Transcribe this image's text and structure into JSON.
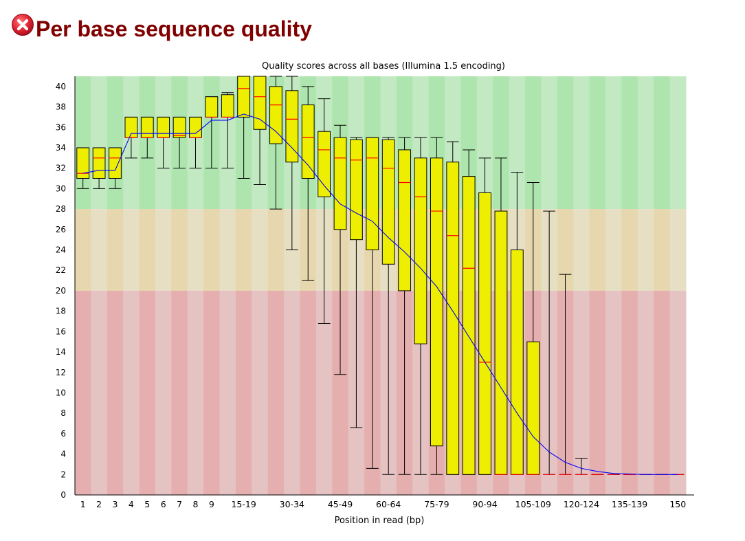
{
  "module": {
    "title": "Per base sequence quality",
    "status_icon": "fail-x-icon",
    "status_color": "#e32636"
  },
  "chart_data": {
    "type": "boxplot",
    "title": "Quality scores across all bases (Illumina 1.5 encoding)",
    "xlabel": "Position in read (bp)",
    "ylabel": "",
    "ylim": [
      0,
      41
    ],
    "yticks": [
      0,
      2,
      4,
      6,
      8,
      10,
      12,
      14,
      16,
      18,
      20,
      22,
      24,
      26,
      28,
      30,
      32,
      34,
      36,
      38,
      40
    ],
    "zones": [
      {
        "name": "good",
        "from": 28,
        "to": 41,
        "colors": [
          "#aee5ae",
          "#c3e9c3"
        ]
      },
      {
        "name": "reasonable",
        "from": 20,
        "to": 28,
        "colors": [
          "#e6d7ae",
          "#e6dfc3"
        ]
      },
      {
        "name": "poor",
        "from": 0,
        "to": 20,
        "colors": [
          "#e6afaf",
          "#e6c3c3"
        ]
      }
    ],
    "colors": {
      "box": "#eeee00",
      "median": "#ff0000",
      "mean": "#0000ff",
      "whisker": "#000000"
    },
    "categories": [
      "1",
      "2",
      "3",
      "4",
      "5",
      "6",
      "7",
      "8",
      "9",
      "10-14",
      "15-19",
      "20-24",
      "25-29",
      "30-34",
      "35-39",
      "40-44",
      "45-49",
      "50-54",
      "55-59",
      "60-64",
      "65-69",
      "70-74",
      "75-79",
      "80-84",
      "85-89",
      "90-94",
      "95-99",
      "100-104",
      "105-109",
      "110-114",
      "115-119",
      "120-124",
      "125-129",
      "130-134",
      "135-139",
      "140-144",
      "145-149",
      "150"
    ],
    "x_tick_labels": [
      "1",
      "2",
      "3",
      "4",
      "5",
      "6",
      "7",
      "8",
      "9",
      "",
      "15-19",
      "",
      "",
      "30-34",
      "",
      "",
      "45-49",
      "",
      "",
      "60-64",
      "",
      "",
      "75-79",
      "",
      "",
      "90-94",
      "",
      "",
      "105-109",
      "",
      "",
      "120-124",
      "",
      "",
      "135-139",
      "",
      "",
      "150"
    ],
    "boxes": [
      {
        "low": 30,
        "q1": 31,
        "median": 31.5,
        "q3": 34,
        "high": 34
      },
      {
        "low": 30,
        "q1": 31,
        "median": 33,
        "q3": 34,
        "high": 34
      },
      {
        "low": 30,
        "q1": 31,
        "median": 33,
        "q3": 34,
        "high": 34
      },
      {
        "low": 33,
        "q1": 35,
        "median": 35,
        "q3": 37,
        "high": 37
      },
      {
        "low": 33,
        "q1": 35,
        "median": 35,
        "q3": 37,
        "high": 37
      },
      {
        "low": 32,
        "q1": 35,
        "median": 35,
        "q3": 37,
        "high": 37
      },
      {
        "low": 32,
        "q1": 35,
        "median": 35.2,
        "q3": 37,
        "high": 37
      },
      {
        "low": 32,
        "q1": 35,
        "median": 35,
        "q3": 37,
        "high": 37
      },
      {
        "low": 32,
        "q1": 37,
        "median": 37,
        "q3": 39,
        "high": 39
      },
      {
        "low": 32,
        "q1": 37,
        "median": 37,
        "q3": 39.2,
        "high": 39.4
      },
      {
        "low": 31,
        "q1": 37,
        "median": 39.8,
        "q3": 41,
        "high": 41
      },
      {
        "low": 30.4,
        "q1": 35.8,
        "median": 39,
        "q3": 41,
        "high": 41
      },
      {
        "low": 28,
        "q1": 34.4,
        "median": 38.2,
        "q3": 40,
        "high": 41
      },
      {
        "low": 24,
        "q1": 32.6,
        "median": 36.8,
        "q3": 39.6,
        "high": 41
      },
      {
        "low": 21,
        "q1": 31,
        "median": 35,
        "q3": 38.2,
        "high": 40
      },
      {
        "low": 16.8,
        "q1": 29.2,
        "median": 33.8,
        "q3": 35.6,
        "high": 38.8
      },
      {
        "low": 11.8,
        "q1": 26,
        "median": 33,
        "q3": 35,
        "high": 36.2
      },
      {
        "low": 6.6,
        "q1": 25,
        "median": 32.8,
        "q3": 34.8,
        "high": 35
      },
      {
        "low": 2.6,
        "q1": 24,
        "median": 33,
        "q3": 35,
        "high": 35
      },
      {
        "low": 2,
        "q1": 22.6,
        "median": 32,
        "q3": 34.8,
        "high": 35
      },
      {
        "low": 2,
        "q1": 20,
        "median": 30.6,
        "q3": 33.8,
        "high": 35
      },
      {
        "low": 2,
        "q1": 14.8,
        "median": 29.2,
        "q3": 33,
        "high": 35
      },
      {
        "low": 2,
        "q1": 4.8,
        "median": 27.8,
        "q3": 33,
        "high": 35
      },
      {
        "low": 2,
        "q1": 2,
        "median": 25.4,
        "q3": 32.6,
        "high": 34.6
      },
      {
        "low": 2,
        "q1": 2,
        "median": 22.2,
        "q3": 31.2,
        "high": 33.8
      },
      {
        "low": 2,
        "q1": 2,
        "median": 13,
        "q3": 29.6,
        "high": 33
      },
      {
        "low": 2,
        "q1": 2,
        "median": 2,
        "q3": 27.8,
        "high": 33
      },
      {
        "low": 2,
        "q1": 2,
        "median": 2,
        "q3": 24,
        "high": 31.6
      },
      {
        "low": 2,
        "q1": 2,
        "median": 2,
        "q3": 15,
        "high": 30.6
      },
      {
        "low": 2,
        "q1": 2,
        "median": 2,
        "q3": 2,
        "high": 27.8
      },
      {
        "low": 2,
        "q1": 2,
        "median": 2,
        "q3": 2,
        "high": 21.6
      },
      {
        "low": 2,
        "q1": 2,
        "median": 2,
        "q3": 2,
        "high": 3.6
      },
      {
        "low": 2,
        "q1": 2,
        "median": 2,
        "q3": 2,
        "high": 2
      },
      {
        "low": 2,
        "q1": 2,
        "median": 2,
        "q3": 2,
        "high": 2
      },
      {
        "low": 2,
        "q1": 2,
        "median": 2,
        "q3": 2,
        "high": 2
      },
      {
        "low": 2,
        "q1": 2,
        "median": 2,
        "q3": 2,
        "high": 2
      },
      {
        "low": 2,
        "q1": 2,
        "median": 2,
        "q3": 2,
        "high": 2
      },
      {
        "low": 2,
        "q1": 2,
        "median": 2,
        "q3": 2,
        "high": 2
      }
    ],
    "mean": [
      31.5,
      31.8,
      31.8,
      35.4,
      35.4,
      35.4,
      35.4,
      35.4,
      36.7,
      36.7,
      37.3,
      36.8,
      35.6,
      34,
      32.3,
      30.3,
      28.5,
      27.6,
      26.8,
      25.2,
      23.8,
      22.2,
      20.4,
      18,
      15.5,
      13,
      10.5,
      8,
      5.7,
      4.2,
      3.2,
      2.6,
      2.3,
      2.1,
      2.05,
      2,
      2,
      2
    ]
  }
}
